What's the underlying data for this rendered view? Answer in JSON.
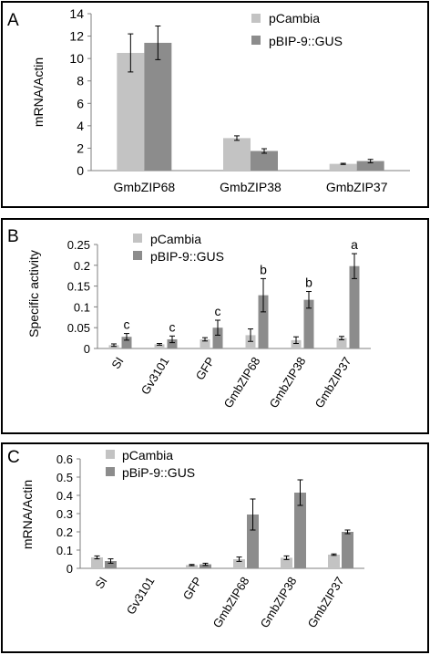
{
  "colors": {
    "pCambia": "#c3c3c3",
    "pBIP": "#8c8c8c",
    "axis": "#7f7f7f",
    "frame": "#000000"
  },
  "panels": [
    {
      "letter": "A"
    },
    {
      "letter": "B"
    },
    {
      "letter": "C"
    }
  ],
  "chart_data": [
    {
      "type": "bar",
      "title": "",
      "xlabel": "",
      "ylabel": "mRNA/Actin",
      "ylim": [
        0,
        14
      ],
      "yticks": [
        "0",
        "2",
        "4",
        "6",
        "8",
        "10",
        "12",
        "14"
      ],
      "categories": [
        "GmbZIP68",
        "GmbZIP38",
        "GmbZIP37"
      ],
      "legend_position": "top-right",
      "grid": false,
      "series": [
        {
          "name": "pCambia",
          "values": [
            10.5,
            2.9,
            0.6
          ],
          "errors": [
            1.7,
            0.2,
            0.05
          ]
        },
        {
          "name": "pBIP-9::GUS",
          "values": [
            11.4,
            1.75,
            0.85
          ],
          "errors": [
            1.5,
            0.2,
            0.15
          ]
        }
      ],
      "annotations": []
    },
    {
      "type": "bar",
      "title": "",
      "xlabel": "",
      "ylabel": "Specific activity",
      "ylim": [
        0,
        0.25
      ],
      "yticks": [
        "0",
        "0.05",
        "0.1",
        "0.15",
        "0.2",
        "0.25"
      ],
      "categories": [
        "SI",
        "Gv3101",
        "GFP",
        "GmbZIP68",
        "GmbZIP38",
        "GmbZIP37"
      ],
      "legend_position": "top-left",
      "grid": false,
      "series": [
        {
          "name": "pCambia",
          "values": [
            0.008,
            0.01,
            0.022,
            0.032,
            0.02,
            0.025
          ],
          "errors": [
            0.003,
            0.002,
            0.004,
            0.015,
            0.008,
            0.004
          ]
        },
        {
          "name": "pBIP-9::GUS",
          "values": [
            0.028,
            0.022,
            0.05,
            0.128,
            0.117,
            0.198
          ],
          "errors": [
            0.008,
            0.008,
            0.018,
            0.04,
            0.02,
            0.03
          ]
        }
      ],
      "annotations": [
        "c",
        "c",
        "c",
        "b",
        "b",
        "a"
      ]
    },
    {
      "type": "bar",
      "title": "",
      "xlabel": "",
      "ylabel": "mRNA/Actin",
      "ylim": [
        0,
        0.6
      ],
      "yticks": [
        "0",
        "0.1",
        "0.2",
        "0.3",
        "0.4",
        "0.5",
        "0.6"
      ],
      "categories": [
        "SI",
        "Gv3101",
        "GFP",
        "GmbZIP68",
        "GmbZIP38",
        "GmbZIP37"
      ],
      "legend_position": "top-left",
      "grid": false,
      "series": [
        {
          "name": "pCambia",
          "values": [
            0.06,
            0.0,
            0.018,
            0.05,
            0.058,
            0.075
          ],
          "errors": [
            0.008,
            0.0,
            0.003,
            0.012,
            0.01,
            0.004
          ]
        },
        {
          "name": "pBiP-9::GUS",
          "values": [
            0.04,
            0.0,
            0.022,
            0.295,
            0.415,
            0.2
          ],
          "errors": [
            0.012,
            0.0,
            0.006,
            0.085,
            0.07,
            0.01
          ]
        }
      ],
      "annotations": []
    }
  ]
}
